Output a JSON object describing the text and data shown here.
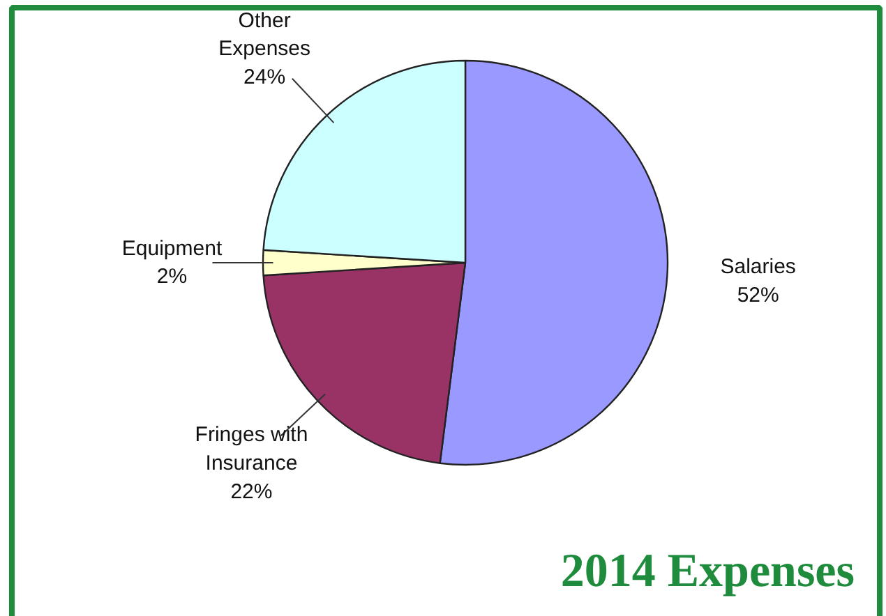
{
  "chart_data": {
    "type": "pie",
    "title": "2014 Expenses",
    "categories": [
      "Salaries",
      "Fringes with Insurance",
      "Equipment",
      "Other Expenses"
    ],
    "values": [
      52,
      22,
      2,
      24
    ],
    "value_labels": [
      "52%",
      "22%",
      "2%",
      "24%"
    ],
    "colors": [
      "#9999ff",
      "#993366",
      "#ffffcc",
      "#ccffff"
    ]
  }
}
